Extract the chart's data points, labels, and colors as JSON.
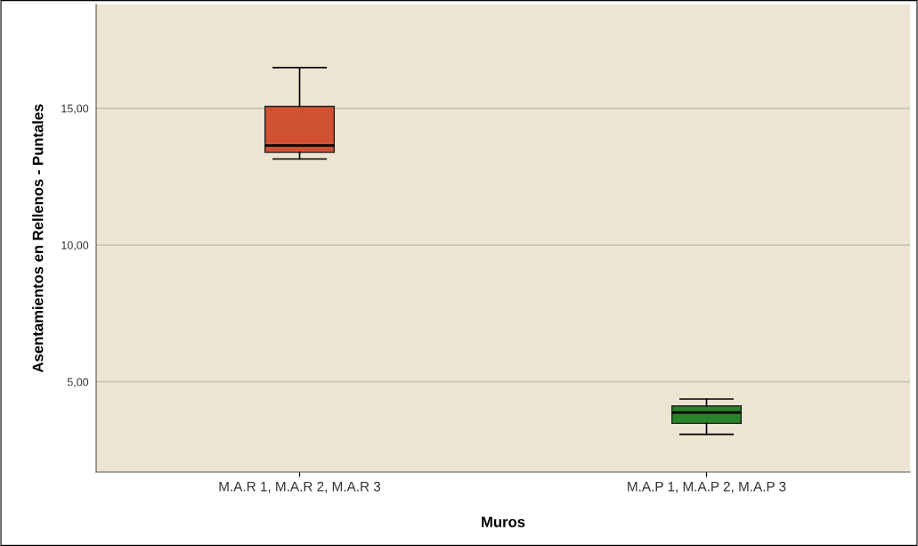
{
  "chart_data": {
    "type": "box",
    "categories": [
      "M.A.R 1, M.A.R 2, M.A.R 3",
      "M.A.P 1, M.A.P 2, M.A.P 3"
    ],
    "colors": [
      "#d05233",
      "#2a8228"
    ],
    "boxes": [
      {
        "low": 13.15,
        "q1": 13.39,
        "median": 13.64,
        "q3": 15.07,
        "high": 16.49
      },
      {
        "low": 3.08,
        "q1": 3.48,
        "median": 3.88,
        "q3": 4.12,
        "high": 4.37
      }
    ],
    "xlabel": "Muros",
    "ylabel": "Asentamientos en Rellenos - Puntales",
    "ylim": [
      1.7,
      18.8
    ],
    "yticks": [
      {
        "value": 5,
        "label": "5,00"
      },
      {
        "value": 10,
        "label": "10,00"
      },
      {
        "value": 15,
        "label": "15,00"
      }
    ],
    "grid": "y"
  }
}
